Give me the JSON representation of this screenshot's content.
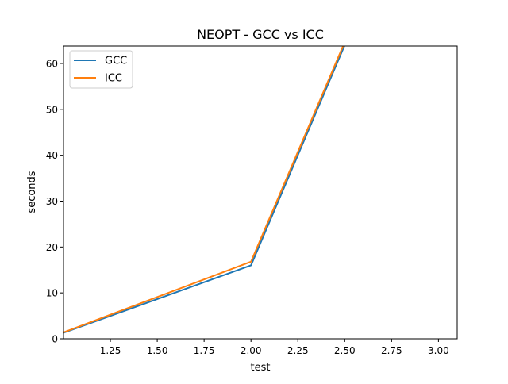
{
  "chart_data": {
    "type": "line",
    "title": "NEOPT - GCC vs ICC",
    "xlabel": "test",
    "ylabel": "seconds",
    "xlim": [
      1.0,
      3.1
    ],
    "ylim": [
      0,
      63.8
    ],
    "xticks": [
      1.25,
      1.5,
      1.75,
      2.0,
      2.25,
      2.5,
      2.75,
      3.0
    ],
    "xtick_labels": [
      "1.25",
      "1.50",
      "1.75",
      "2.00",
      "2.25",
      "2.50",
      "2.75",
      "3.00"
    ],
    "yticks": [
      0,
      10,
      20,
      30,
      40,
      50,
      60
    ],
    "ytick_labels": [
      "0",
      "10",
      "20",
      "30",
      "40",
      "50",
      "60"
    ],
    "grid": false,
    "legend_position": "top-left",
    "x": [
      1,
      2,
      3
    ],
    "series": [
      {
        "name": "GCC",
        "color": "#1f77b4",
        "values": [
          1.3,
          16.0,
          112.0
        ]
      },
      {
        "name": "ICC",
        "color": "#ff7f0e",
        "values": [
          1.4,
          16.8,
          112.5
        ]
      }
    ]
  }
}
